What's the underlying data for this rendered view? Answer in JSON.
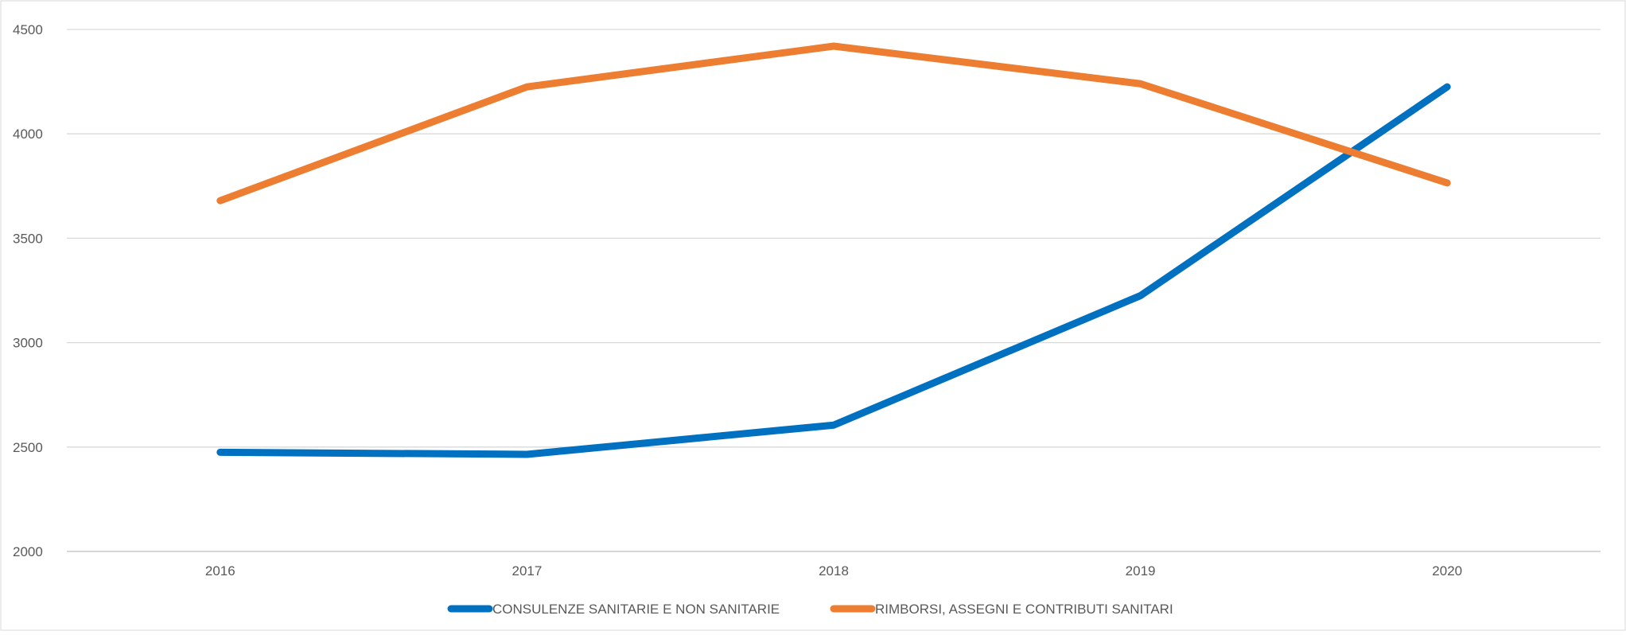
{
  "chart_data": {
    "type": "line",
    "title": "",
    "xlabel": "",
    "ylabel": "",
    "categories": [
      "2016",
      "2017",
      "2018",
      "2019",
      "2020"
    ],
    "ylim": [
      2000,
      4500
    ],
    "yticks": [
      2000,
      2500,
      3000,
      3500,
      4000,
      4500
    ],
    "grid": true,
    "legend_position": "bottom",
    "series": [
      {
        "name": "CONSULENZE SANITARIE E NON SANITARIE",
        "color": "#0070C0",
        "values": [
          2475,
          2465,
          2605,
          3225,
          4225
        ]
      },
      {
        "name": "RIMBORSI, ASSEGNI E CONTRIBUTI SANITARI",
        "color": "#ED7D31",
        "values": [
          3680,
          4225,
          4420,
          4240,
          3765
        ]
      }
    ]
  }
}
